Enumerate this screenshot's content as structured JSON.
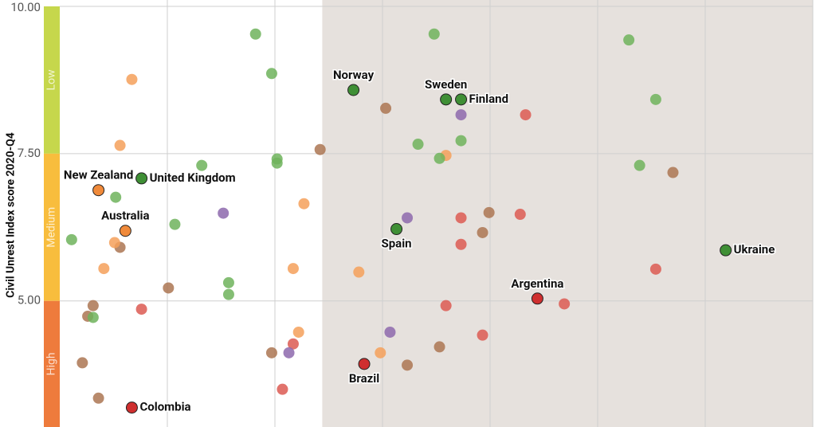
{
  "chart_data": {
    "type": "scatter",
    "y_label": "Civil Unrest Index score 2020-Q4",
    "xlim": [
      0,
      7
    ],
    "xticks": [
      1,
      2,
      3,
      4,
      5,
      6
    ],
    "ylim": [
      2.86,
      10
    ],
    "yticks": [
      {
        "value": 10,
        "label": "10.00"
      },
      {
        "value": 7.5,
        "label": "7.50"
      },
      {
        "value": 5,
        "label": "5.00"
      }
    ],
    "grid": true,
    "shade_xlim": [
      2.44,
      7
    ],
    "shade_color": "#e6e1dd",
    "bands": [
      {
        "label": "Low",
        "from": 7.5,
        "to": 10,
        "color": "#c6d74c"
      },
      {
        "label": "Medium",
        "from": 5,
        "to": 7.5,
        "color": "#f8bd3d"
      },
      {
        "label": "High",
        "from": 2.86,
        "to": 5,
        "color": "#ee7b3c"
      }
    ],
    "points": [
      {
        "label": "Norway",
        "x": 2.73,
        "y": 8.58,
        "color": "#3f8f35"
      },
      {
        "label": "Sweden",
        "x": 3.59,
        "y": 8.42,
        "color": "#3f8f35"
      },
      {
        "label": "Finland",
        "x": 3.73,
        "y": 8.42,
        "color": "#3f8f35"
      },
      {
        "label": "New Zealand",
        "x": 0.36,
        "y": 6.88,
        "color": "#f08a3a"
      },
      {
        "label": "United Kingdom",
        "x": 0.76,
        "y": 7.08,
        "color": "#3f8f35"
      },
      {
        "label": "Australia",
        "x": 0.61,
        "y": 6.19,
        "color": "#f08a3a"
      },
      {
        "label": "Spain",
        "x": 3.13,
        "y": 6.22,
        "color": "#3f8f35"
      },
      {
        "label": "Ukraine",
        "x": 6.19,
        "y": 5.86,
        "color": "#3f8f35"
      },
      {
        "label": "Argentina",
        "x": 4.44,
        "y": 5.04,
        "color": "#cf2f2f"
      },
      {
        "label": "Brazil",
        "x": 2.83,
        "y": 3.93,
        "color": "#cf2f2f"
      },
      {
        "label": "Colombia",
        "x": 0.67,
        "y": 3.19,
        "color": "#cf2f2f"
      },
      {
        "x": 1.82,
        "y": 9.53,
        "color": "#6fb35c"
      },
      {
        "x": 1.97,
        "y": 8.86,
        "color": "#6fb35c"
      },
      {
        "x": 3.48,
        "y": 9.53,
        "color": "#6fb35c"
      },
      {
        "x": 5.29,
        "y": 9.43,
        "color": "#6fb35c"
      },
      {
        "x": 5.54,
        "y": 8.42,
        "color": "#6fb35c"
      },
      {
        "x": 1.32,
        "y": 7.3,
        "color": "#6fb35c"
      },
      {
        "x": 2.02,
        "y": 7.41,
        "color": "#6fb35c"
      },
      {
        "x": 2.02,
        "y": 7.34,
        "color": "#6fb35c"
      },
      {
        "x": 0.52,
        "y": 6.76,
        "color": "#6fb35c"
      },
      {
        "x": 1.07,
        "y": 6.3,
        "color": "#6fb35c"
      },
      {
        "x": 0.11,
        "y": 6.04,
        "color": "#6fb35c"
      },
      {
        "x": 1.57,
        "y": 5.31,
        "color": "#6fb35c"
      },
      {
        "x": 1.57,
        "y": 5.11,
        "color": "#6fb35c"
      },
      {
        "x": 0.31,
        "y": 4.72,
        "color": "#6fb35c"
      },
      {
        "x": 3.33,
        "y": 7.66,
        "color": "#6fb35c"
      },
      {
        "x": 3.73,
        "y": 7.72,
        "color": "#6fb35c"
      },
      {
        "x": 3.53,
        "y": 7.42,
        "color": "#6fb35c"
      },
      {
        "x": 5.39,
        "y": 7.3,
        "color": "#6fb35c"
      },
      {
        "x": 0.67,
        "y": 8.76,
        "color": "#f4a05a"
      },
      {
        "x": 0.56,
        "y": 7.64,
        "color": "#f4a05a"
      },
      {
        "x": 3.59,
        "y": 7.47,
        "color": "#f4a05a"
      },
      {
        "x": 2.27,
        "y": 6.65,
        "color": "#f4a05a"
      },
      {
        "x": 0.51,
        "y": 5.99,
        "color": "#f4a05a"
      },
      {
        "x": 0.41,
        "y": 5.55,
        "color": "#f4a05a"
      },
      {
        "x": 2.17,
        "y": 5.55,
        "color": "#f4a05a"
      },
      {
        "x": 2.78,
        "y": 5.49,
        "color": "#f4a05a"
      },
      {
        "x": 2.22,
        "y": 4.47,
        "color": "#f4a05a"
      },
      {
        "x": 2.98,
        "y": 4.12,
        "color": "#f4a05a"
      },
      {
        "x": 3.03,
        "y": 8.27,
        "color": "#ab7552"
      },
      {
        "x": 2.42,
        "y": 7.57,
        "color": "#ab7552"
      },
      {
        "x": 5.7,
        "y": 7.18,
        "color": "#ab7552"
      },
      {
        "x": 3.99,
        "y": 6.5,
        "color": "#ab7552"
      },
      {
        "x": 0.56,
        "y": 5.91,
        "color": "#ab7552"
      },
      {
        "x": 3.93,
        "y": 6.16,
        "color": "#ab7552"
      },
      {
        "x": 1.01,
        "y": 5.22,
        "color": "#ab7552"
      },
      {
        "x": 0.31,
        "y": 4.92,
        "color": "#ab7552"
      },
      {
        "x": 0.26,
        "y": 4.74,
        "color": "#ab7552"
      },
      {
        "x": 0.21,
        "y": 3.95,
        "color": "#ab7552"
      },
      {
        "x": 0.36,
        "y": 3.35,
        "color": "#ab7552"
      },
      {
        "x": 1.97,
        "y": 4.12,
        "color": "#ab7552"
      },
      {
        "x": 3.53,
        "y": 4.22,
        "color": "#ab7552"
      },
      {
        "x": 3.23,
        "y": 3.91,
        "color": "#ab7552"
      },
      {
        "x": 3.73,
        "y": 8.16,
        "color": "#8d68ad"
      },
      {
        "x": 1.52,
        "y": 6.49,
        "color": "#8d68ad"
      },
      {
        "x": 3.23,
        "y": 6.41,
        "color": "#8d68ad"
      },
      {
        "x": 3.07,
        "y": 4.47,
        "color": "#8d68ad"
      },
      {
        "x": 2.13,
        "y": 4.12,
        "color": "#8d68ad"
      },
      {
        "x": 4.33,
        "y": 8.16,
        "color": "#dc5a52"
      },
      {
        "x": 4.28,
        "y": 6.47,
        "color": "#dc5a52"
      },
      {
        "x": 3.73,
        "y": 6.41,
        "color": "#dc5a52"
      },
      {
        "x": 3.73,
        "y": 5.96,
        "color": "#dc5a52"
      },
      {
        "x": 5.54,
        "y": 5.54,
        "color": "#dc5a52"
      },
      {
        "x": 0.76,
        "y": 4.86,
        "color": "#dc5a52"
      },
      {
        "x": 3.59,
        "y": 4.92,
        "color": "#dc5a52"
      },
      {
        "x": 4.69,
        "y": 4.95,
        "color": "#dc5a52"
      },
      {
        "x": 3.93,
        "y": 4.42,
        "color": "#dc5a52"
      },
      {
        "x": 2.17,
        "y": 4.27,
        "color": "#dc5a52"
      },
      {
        "x": 2.07,
        "y": 3.5,
        "color": "#dc5a52"
      }
    ]
  }
}
